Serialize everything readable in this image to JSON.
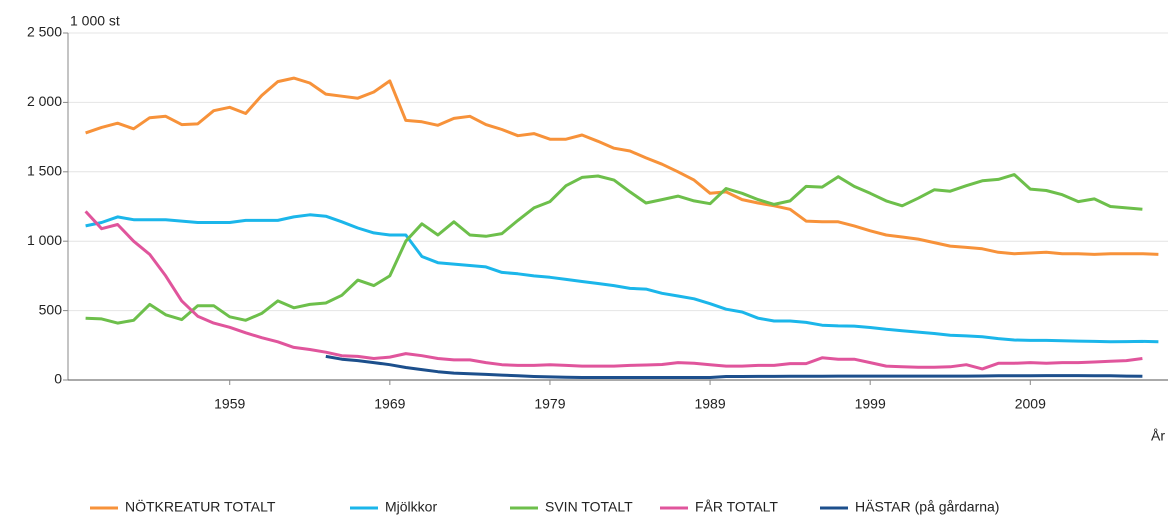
{
  "chart_data": {
    "type": "line",
    "y_unit_label": "1 000 st",
    "x_label": "År",
    "x": [
      1950,
      1951,
      1952,
      1953,
      1954,
      1955,
      1956,
      1957,
      1958,
      1959,
      1960,
      1961,
      1962,
      1963,
      1964,
      1965,
      1966,
      1967,
      1968,
      1969,
      1970,
      1971,
      1972,
      1973,
      1974,
      1975,
      1976,
      1977,
      1978,
      1979,
      1980,
      1981,
      1982,
      1983,
      1984,
      1985,
      1986,
      1987,
      1988,
      1989,
      1990,
      1991,
      1992,
      1993,
      1994,
      1995,
      1996,
      1997,
      1998,
      1999,
      2000,
      2001,
      2002,
      2003,
      2004,
      2005,
      2006,
      2007,
      2008,
      2009,
      2010,
      2011,
      2012,
      2013,
      2014,
      2015,
      2016,
      2017
    ],
    "xlim": [
      1948.9,
      2017.6
    ],
    "xticks": [
      1959,
      1969,
      1979,
      1989,
      1999,
      2009
    ],
    "ylim": [
      0,
      2500
    ],
    "yticks": [
      0,
      500,
      {
        "value": 1000,
        "label": "1 000"
      },
      {
        "value": 1500,
        "label": "1 500"
      },
      {
        "value": 2000,
        "label": "2 000"
      },
      {
        "value": 2500,
        "label": "2 500"
      }
    ],
    "grid": true,
    "legend": "bottom",
    "series": [
      {
        "name": "NÖTKREATUR TOTALT",
        "color": "#f7923a",
        "values": [
          1780,
          1820,
          1850,
          1810,
          1890,
          1900,
          1840,
          1845,
          1940,
          1965,
          1920,
          2050,
          2150,
          2175,
          2140,
          2060,
          2045,
          2030,
          2075,
          2155,
          1870,
          1860,
          1835,
          1885,
          1900,
          1840,
          1805,
          1760,
          1775,
          1735,
          1735,
          1765,
          1720,
          1670,
          1650,
          1600,
          1555,
          1500,
          1440,
          1345,
          1355,
          1300,
          1275,
          1255,
          1230,
          1145,
          1140,
          1140,
          1110,
          1075,
          1045,
          1030,
          1015,
          990,
          965,
          955,
          945,
          920,
          910,
          915,
          920,
          910,
          910,
          905,
          910,
          910,
          910,
          905
        ]
      },
      {
        "name": "Mjölkkor",
        "color": "#1bb6ea",
        "values": [
          1110,
          1135,
          1175,
          1155,
          1155,
          1155,
          1145,
          1135,
          1135,
          1135,
          1150,
          1150,
          1150,
          1175,
          1190,
          1180,
          1140,
          1095,
          1060,
          1045,
          1045,
          890,
          845,
          835,
          825,
          815,
          775,
          765,
          750,
          740,
          725,
          710,
          695,
          680,
          660,
          655,
          625,
          605,
          585,
          550,
          510,
          490,
          445,
          425,
          425,
          415,
          395,
          390,
          388,
          378,
          365,
          355,
          345,
          335,
          322,
          318,
          312,
          298,
          288,
          285,
          285,
          283,
          280,
          278,
          275,
          277,
          278,
          275
        ]
      },
      {
        "name": "SVIN TOTALT",
        "color": "#6dbf4b",
        "values": [
          445,
          440,
          410,
          430,
          545,
          470,
          435,
          535,
          535,
          455,
          430,
          480,
          570,
          520,
          545,
          555,
          610,
          720,
          680,
          750,
          1000,
          1125,
          1045,
          1140,
          1045,
          1035,
          1055,
          1150,
          1240,
          1285,
          1400,
          1460,
          1470,
          1440,
          1355,
          1275,
          1300,
          1325,
          1290,
          1270,
          1380,
          1345,
          1300,
          1265,
          1290,
          1395,
          1390,
          1465,
          1395,
          1345,
          1290,
          1255,
          1310,
          1370,
          1360,
          1400,
          1435,
          1445,
          1480,
          1375,
          1365,
          1335,
          1285,
          1305,
          1250,
          1240,
          1230,
          null
        ]
      },
      {
        "name": "FÅR TOTALT",
        "color": "#e0559c",
        "values": [
          1215,
          1090,
          1120,
          1000,
          905,
          750,
          570,
          460,
          410,
          380,
          340,
          305,
          275,
          235,
          220,
          200,
          175,
          170,
          155,
          165,
          190,
          175,
          155,
          145,
          145,
          125,
          110,
          105,
          105,
          110,
          105,
          100,
          100,
          100,
          105,
          108,
          112,
          125,
          120,
          110,
          100,
          100,
          105,
          105,
          118,
          118,
          160,
          150,
          150,
          125,
          100,
          95,
          92,
          92,
          95,
          110,
          80,
          120,
          120,
          125,
          120,
          125,
          125,
          130,
          135,
          140,
          155,
          null
        ]
      },
      {
        "name": "HÄSTAR (på gårdarna)",
        "color": "#1c4f8c",
        "values": [
          null,
          null,
          null,
          null,
          null,
          null,
          null,
          null,
          null,
          null,
          null,
          null,
          null,
          null,
          null,
          170,
          150,
          140,
          125,
          110,
          90,
          75,
          60,
          50,
          45,
          40,
          35,
          30,
          25,
          22,
          20,
          18,
          18,
          18,
          18,
          18,
          18,
          18,
          18,
          18,
          25,
          25,
          26,
          26,
          27,
          27,
          27,
          28,
          28,
          28,
          28,
          28,
          28,
          28,
          28,
          28,
          29,
          30,
          31,
          31,
          32,
          32,
          32,
          31,
          30,
          28,
          27,
          null
        ]
      }
    ]
  }
}
